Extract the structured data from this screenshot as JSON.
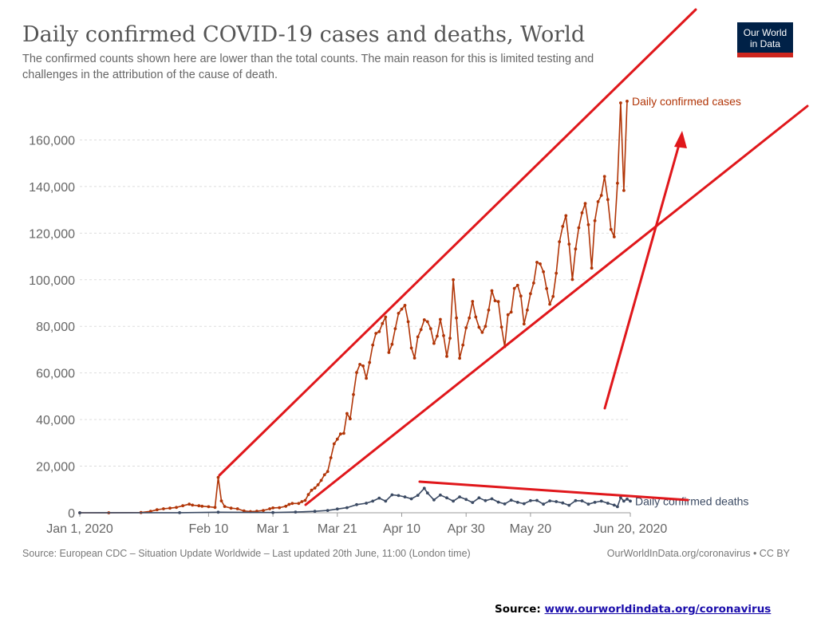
{
  "logo": {
    "line1": "Our World",
    "line2": "in Data",
    "bg": "#002147",
    "accent": "#ce261e"
  },
  "footer": {
    "source_label": "Source:",
    "source_link": "www.ourworldindata.org/coronavirus"
  },
  "chart_data": {
    "type": "line",
    "title": "Daily confirmed COVID-19 cases and deaths, World",
    "subtitle_lines": [
      "The confirmed counts shown here are lower than the total counts. The main reason for this is limited testing and",
      "challenges in the attribution of the cause of death."
    ],
    "xlabel": "",
    "ylabel": "",
    "xlim": [
      "2020-01-01",
      "2020-06-20"
    ],
    "ylim": [
      0,
      180000
    ],
    "y_ticks": [
      0,
      20000,
      40000,
      60000,
      80000,
      100000,
      120000,
      140000,
      160000
    ],
    "y_tick_labels": [
      "0",
      "20,000",
      "40,000",
      "60,000",
      "80,000",
      "100,000",
      "120,000",
      "140,000",
      "160,000"
    ],
    "x_tick_labels": [
      {
        "date": "2020-01-01",
        "label": "Jan 1, 2020"
      },
      {
        "date": "2020-02-10",
        "label": "Feb 10"
      },
      {
        "date": "2020-03-01",
        "label": "Mar 1"
      },
      {
        "date": "2020-03-21",
        "label": "Mar 21"
      },
      {
        "date": "2020-04-10",
        "label": "Apr 10"
      },
      {
        "date": "2020-04-30",
        "label": "Apr 30"
      },
      {
        "date": "2020-05-20",
        "label": "May 20"
      },
      {
        "date": "2020-06-20",
        "label": "Jun 20, 2020"
      }
    ],
    "grid": true,
    "series": [
      {
        "name": "Daily confirmed cases",
        "color": "#b13507",
        "points": [
          [
            "2020-01-01",
            0
          ],
          [
            "2020-01-10",
            0
          ],
          [
            "2020-01-20",
            100
          ],
          [
            "2020-01-23",
            600
          ],
          [
            "2020-01-25",
            1300
          ],
          [
            "2020-01-27",
            1700
          ],
          [
            "2020-01-29",
            2000
          ],
          [
            "2020-01-31",
            2300
          ],
          [
            "2020-02-02",
            3000
          ],
          [
            "2020-02-04",
            3700
          ],
          [
            "2020-02-05",
            3300
          ],
          [
            "2020-02-07",
            3000
          ],
          [
            "2020-02-08",
            2800
          ],
          [
            "2020-02-10",
            2600
          ],
          [
            "2020-02-12",
            2300
          ],
          [
            "2020-02-13",
            15200
          ],
          [
            "2020-02-14",
            5100
          ],
          [
            "2020-02-15",
            2700
          ],
          [
            "2020-02-17",
            2000
          ],
          [
            "2020-02-19",
            1700
          ],
          [
            "2020-02-21",
            800
          ],
          [
            "2020-02-23",
            500
          ],
          [
            "2020-02-25",
            700
          ],
          [
            "2020-02-27",
            1000
          ],
          [
            "2020-02-29",
            1700
          ],
          [
            "2020-03-01",
            2100
          ],
          [
            "2020-03-03",
            2200
          ],
          [
            "2020-03-05",
            2800
          ],
          [
            "2020-03-06",
            3600
          ],
          [
            "2020-03-07",
            4000
          ],
          [
            "2020-03-09",
            4000
          ],
          [
            "2020-03-10",
            4800
          ],
          [
            "2020-03-11",
            5300
          ],
          [
            "2020-03-12",
            7800
          ],
          [
            "2020-03-13",
            9700
          ],
          [
            "2020-03-14",
            10600
          ],
          [
            "2020-03-15",
            12000
          ],
          [
            "2020-03-16",
            13900
          ],
          [
            "2020-03-17",
            16300
          ],
          [
            "2020-03-18",
            17700
          ],
          [
            "2020-03-19",
            23600
          ],
          [
            "2020-03-20",
            29600
          ],
          [
            "2020-03-21",
            31600
          ],
          [
            "2020-03-22",
            33800
          ],
          [
            "2020-03-23",
            34100
          ],
          [
            "2020-03-24",
            42600
          ],
          [
            "2020-03-25",
            40300
          ],
          [
            "2020-03-26",
            50700
          ],
          [
            "2020-03-27",
            60200
          ],
          [
            "2020-03-28",
            63700
          ],
          [
            "2020-03-29",
            63000
          ],
          [
            "2020-03-30",
            57700
          ],
          [
            "2020-03-31",
            64500
          ],
          [
            "2020-04-01",
            72000
          ],
          [
            "2020-04-02",
            77000
          ],
          [
            "2020-04-03",
            77700
          ],
          [
            "2020-04-04",
            81200
          ],
          [
            "2020-04-05",
            84000
          ],
          [
            "2020-04-06",
            68800
          ],
          [
            "2020-04-07",
            72300
          ],
          [
            "2020-04-08",
            79000
          ],
          [
            "2020-04-09",
            85600
          ],
          [
            "2020-04-10",
            87400
          ],
          [
            "2020-04-11",
            89000
          ],
          [
            "2020-04-12",
            82000
          ],
          [
            "2020-04-13",
            70700
          ],
          [
            "2020-04-14",
            66400
          ],
          [
            "2020-04-15",
            75500
          ],
          [
            "2020-04-16",
            78600
          ],
          [
            "2020-04-17",
            82800
          ],
          [
            "2020-04-18",
            82000
          ],
          [
            "2020-04-19",
            79000
          ],
          [
            "2020-04-20",
            72700
          ],
          [
            "2020-04-21",
            75800
          ],
          [
            "2020-04-22",
            83000
          ],
          [
            "2020-04-23",
            76000
          ],
          [
            "2020-04-24",
            67100
          ],
          [
            "2020-04-25",
            74900
          ],
          [
            "2020-04-26",
            100000
          ],
          [
            "2020-04-27",
            83600
          ],
          [
            "2020-04-28",
            66300
          ],
          [
            "2020-04-29",
            72000
          ],
          [
            "2020-04-30",
            79400
          ],
          [
            "2020-05-01",
            83600
          ],
          [
            "2020-05-02",
            90700
          ],
          [
            "2020-05-03",
            84000
          ],
          [
            "2020-05-04",
            79600
          ],
          [
            "2020-05-05",
            77400
          ],
          [
            "2020-05-06",
            80000
          ],
          [
            "2020-05-07",
            87000
          ],
          [
            "2020-05-08",
            95300
          ],
          [
            "2020-05-09",
            91000
          ],
          [
            "2020-05-10",
            90600
          ],
          [
            "2020-05-11",
            79700
          ],
          [
            "2020-05-12",
            71300
          ],
          [
            "2020-05-13",
            85000
          ],
          [
            "2020-05-14",
            86100
          ],
          [
            "2020-05-15",
            96300
          ],
          [
            "2020-05-16",
            97600
          ],
          [
            "2020-05-17",
            93000
          ],
          [
            "2020-05-18",
            81000
          ],
          [
            "2020-05-19",
            87000
          ],
          [
            "2020-05-20",
            94000
          ],
          [
            "2020-05-21",
            98600
          ],
          [
            "2020-05-22",
            107500
          ],
          [
            "2020-05-23",
            106800
          ],
          [
            "2020-05-24",
            103400
          ],
          [
            "2020-05-25",
            96200
          ],
          [
            "2020-05-26",
            89500
          ],
          [
            "2020-05-27",
            92800
          ],
          [
            "2020-05-28",
            102800
          ],
          [
            "2020-05-29",
            116300
          ],
          [
            "2020-05-30",
            122900
          ],
          [
            "2020-05-31",
            127500
          ],
          [
            "2020-06-01",
            115300
          ],
          [
            "2020-06-02",
            100100
          ],
          [
            "2020-06-03",
            113200
          ],
          [
            "2020-06-04",
            122300
          ],
          [
            "2020-06-05",
            128700
          ],
          [
            "2020-06-06",
            132700
          ],
          [
            "2020-06-07",
            123600
          ],
          [
            "2020-06-08",
            105000
          ],
          [
            "2020-06-09",
            125300
          ],
          [
            "2020-06-10",
            133500
          ],
          [
            "2020-06-11",
            136200
          ],
          [
            "2020-06-12",
            144300
          ],
          [
            "2020-06-13",
            134400
          ],
          [
            "2020-06-14",
            121600
          ],
          [
            "2020-06-15",
            118400
          ],
          [
            "2020-06-16",
            141400
          ],
          [
            "2020-06-17",
            175900
          ],
          [
            "2020-06-18",
            138300
          ],
          [
            "2020-06-19",
            176600
          ]
        ]
      },
      {
        "name": "Daily confirmed deaths",
        "color": "#3b4a63",
        "points": [
          [
            "2020-01-01",
            0
          ],
          [
            "2020-02-01",
            50
          ],
          [
            "2020-02-13",
            250
          ],
          [
            "2020-03-01",
            100
          ],
          [
            "2020-03-08",
            300
          ],
          [
            "2020-03-14",
            600
          ],
          [
            "2020-03-18",
            1000
          ],
          [
            "2020-03-21",
            1600
          ],
          [
            "2020-03-24",
            2200
          ],
          [
            "2020-03-27",
            3500
          ],
          [
            "2020-03-30",
            4100
          ],
          [
            "2020-04-01",
            5000
          ],
          [
            "2020-04-03",
            6300
          ],
          [
            "2020-04-05",
            5000
          ],
          [
            "2020-04-07",
            7700
          ],
          [
            "2020-04-09",
            7400
          ],
          [
            "2020-04-11",
            6800
          ],
          [
            "2020-04-13",
            6000
          ],
          [
            "2020-04-15",
            7500
          ],
          [
            "2020-04-17",
            10500
          ],
          [
            "2020-04-18",
            8500
          ],
          [
            "2020-04-20",
            5500
          ],
          [
            "2020-04-22",
            7600
          ],
          [
            "2020-04-24",
            6400
          ],
          [
            "2020-04-26",
            5000
          ],
          [
            "2020-04-28",
            6800
          ],
          [
            "2020-04-30",
            5700
          ],
          [
            "2020-05-02",
            4400
          ],
          [
            "2020-05-04",
            6400
          ],
          [
            "2020-05-06",
            5200
          ],
          [
            "2020-05-08",
            6000
          ],
          [
            "2020-05-10",
            4600
          ],
          [
            "2020-05-12",
            3800
          ],
          [
            "2020-05-14",
            5400
          ],
          [
            "2020-05-16",
            4500
          ],
          [
            "2020-05-18",
            3900
          ],
          [
            "2020-05-20",
            5200
          ],
          [
            "2020-05-22",
            5300
          ],
          [
            "2020-05-24",
            3700
          ],
          [
            "2020-05-26",
            5100
          ],
          [
            "2020-05-28",
            4800
          ],
          [
            "2020-05-30",
            4200
          ],
          [
            "2020-06-01",
            3200
          ],
          [
            "2020-06-03",
            5200
          ],
          [
            "2020-06-05",
            5100
          ],
          [
            "2020-06-07",
            3700
          ],
          [
            "2020-06-09",
            4500
          ],
          [
            "2020-06-11",
            5000
          ],
          [
            "2020-06-13",
            4100
          ],
          [
            "2020-06-15",
            3300
          ],
          [
            "2020-06-16",
            2600
          ],
          [
            "2020-06-17",
            6500
          ],
          [
            "2020-06-18",
            5000
          ],
          [
            "2020-06-19",
            5900
          ],
          [
            "2020-06-20",
            5000
          ]
        ]
      }
    ],
    "source_note": "Source: European CDC – Situation Update Worldwide – Last updated 20th June, 11:00 (London time)",
    "credit_note": "OurWorldInData.org/coronavirus • CC BY",
    "annotation_color": "#e0171b"
  }
}
